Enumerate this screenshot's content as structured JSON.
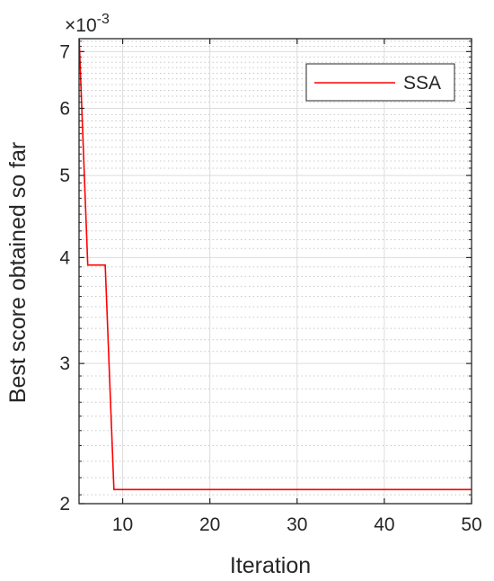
{
  "chart_data": {
    "type": "line",
    "title": "",
    "xlabel": "Iteration",
    "ylabel": "Best score obtained so far",
    "y_exponent_label": "×10",
    "y_exponent_power": "-3",
    "y_scale": "log",
    "xlim": [
      5,
      50
    ],
    "ylim": [
      0.00205,
      0.00725
    ],
    "x_ticks": [
      10,
      20,
      30,
      40,
      50
    ],
    "x_tick_labels": [
      "10",
      "20",
      "30",
      "40",
      "50"
    ],
    "y_ticks": [
      0.002,
      0.003,
      0.004,
      0.005,
      0.006,
      0.007
    ],
    "y_tick_labels": [
      "2",
      "3",
      "4",
      "5",
      "6",
      "7"
    ],
    "y_minor_ticks": [
      0.0021,
      0.0022,
      0.0023,
      0.0024,
      0.0025,
      0.0026,
      0.0027,
      0.0028,
      0.0029,
      0.0031,
      0.0032,
      0.0033,
      0.0034,
      0.0035,
      0.0036,
      0.0037,
      0.0038,
      0.0039,
      0.0041,
      0.0042,
      0.0043,
      0.0044,
      0.0045,
      0.0046,
      0.0047,
      0.0048,
      0.0049,
      0.0051,
      0.0052,
      0.0053,
      0.0054,
      0.0055,
      0.0056,
      0.0057,
      0.0058,
      0.0059,
      0.0061,
      0.0062,
      0.0063,
      0.0064,
      0.0065,
      0.0066,
      0.0067,
      0.0068,
      0.0069,
      0.0071,
      0.0072
    ],
    "grid": true,
    "legend_position": "top-right",
    "series": [
      {
        "name": "SSA",
        "color": "#ff0000",
        "x": [
          5,
          6,
          7,
          8,
          9,
          10,
          20,
          30,
          40,
          50
        ],
        "y": [
          0.0073,
          0.00392,
          0.00392,
          0.00392,
          0.00213,
          0.00213,
          0.00213,
          0.00213,
          0.00213,
          0.00213
        ]
      }
    ]
  }
}
